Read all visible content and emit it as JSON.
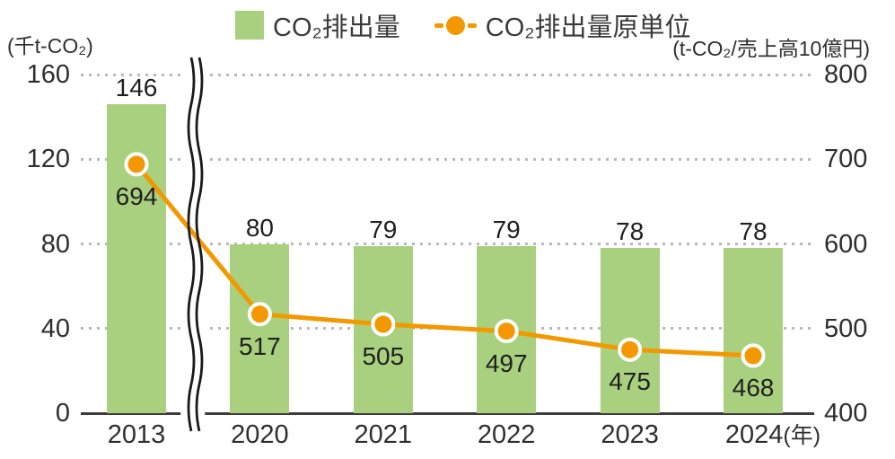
{
  "chart_data": {
    "type": "combo_bar_line",
    "title": "",
    "categories": [
      "2013",
      "2020",
      "2021",
      "2022",
      "2023",
      "2024"
    ],
    "x_axis_suffix": "(年)",
    "series": [
      {
        "name": "CO₂排出量",
        "type": "bar",
        "axis": "left",
        "color": "#a9d07e",
        "values": [
          146,
          80,
          79,
          79,
          78,
          78
        ]
      },
      {
        "name": "CO₂排出量原単位",
        "type": "line",
        "axis": "right",
        "color": "#f39800",
        "marker_ring_color": "#ffffff",
        "values": [
          694,
          517,
          505,
          497,
          475,
          468
        ]
      }
    ],
    "left_axis": {
      "label": "(千t-CO₂)",
      "ticks": [
        0,
        40,
        80,
        120,
        160
      ],
      "range": [
        0,
        160
      ]
    },
    "right_axis": {
      "label": "(t-CO₂/売上高10億円)",
      "ticks": [
        400,
        500,
        600,
        700,
        800
      ],
      "range": [
        400,
        800
      ]
    },
    "axis_break": {
      "between": [
        "2013",
        "2020"
      ]
    },
    "grid": "dotted horizontal",
    "grid_color": "#b9b9b9",
    "legend_position": "top"
  }
}
